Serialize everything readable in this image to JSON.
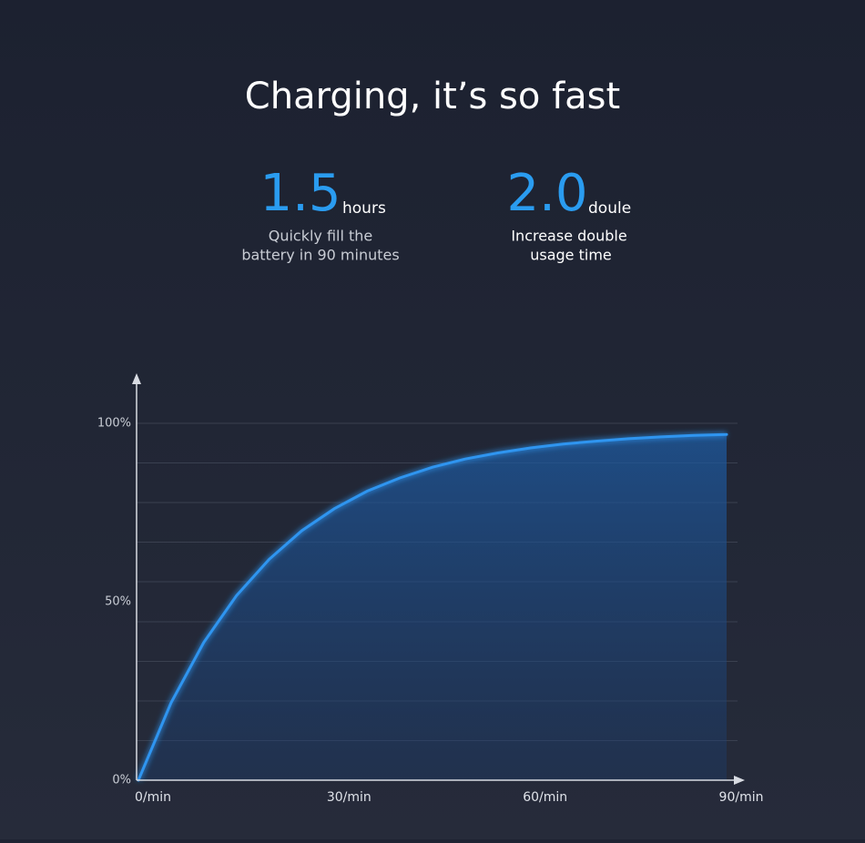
{
  "header": {
    "title": "Charging, it’s so fast",
    "stats": [
      {
        "number": "1.5",
        "unit": "hours",
        "lines": [
          "Quickly fill the",
          "battery in 90 minutes"
        ]
      },
      {
        "number": "2.0",
        "unit": "doule",
        "lines": [
          "Increase double",
          "usage time"
        ]
      }
    ]
  },
  "chart_data": {
    "type": "area",
    "x": [
      0,
      5,
      10,
      15,
      20,
      25,
      30,
      35,
      40,
      45,
      50,
      55,
      60,
      65,
      70,
      75,
      80,
      85,
      90
    ],
    "values": [
      0,
      21.7,
      38.6,
      51.7,
      61.9,
      69.9,
      76.1,
      81.0,
      84.7,
      87.7,
      90.0,
      91.7,
      93.1,
      94.2,
      95.0,
      95.7,
      96.2,
      96.6,
      96.9
    ],
    "color": "#2f95f0",
    "xlim": [
      0,
      90
    ],
    "xticks": [
      {
        "value": 0,
        "label": "0/min"
      },
      {
        "value": 30,
        "label": "30/min"
      },
      {
        "value": 60,
        "label": "60/min"
      },
      {
        "value": 90,
        "label": "90/min"
      }
    ],
    "ylim": [
      0,
      100
    ],
    "yticks": [
      {
        "value": 0,
        "label": "0%"
      },
      {
        "value": 50,
        "label": "50%"
      },
      {
        "value": 100,
        "label": "100%"
      }
    ],
    "ygrid": [
      11.1,
      22.2,
      33.3,
      44.4,
      55.6,
      66.7,
      77.8,
      88.9,
      100
    ],
    "grid": true
  }
}
